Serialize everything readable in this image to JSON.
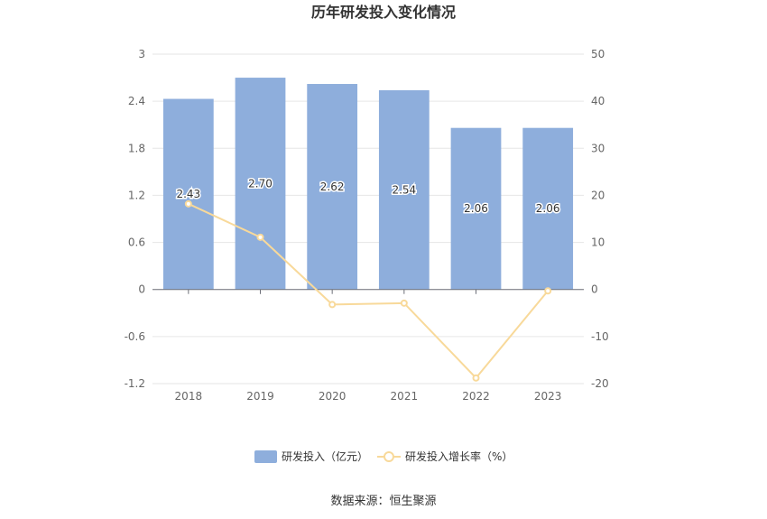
{
  "chart_data": {
    "type": "bar",
    "title": "历年研发投入变化情况",
    "categories": [
      "2018",
      "2019",
      "2020",
      "2021",
      "2022",
      "2023"
    ],
    "series": [
      {
        "name": "研发投入（亿元）",
        "type": "bar",
        "axis": "left",
        "values": [
          2.43,
          2.7,
          2.62,
          2.54,
          2.06,
          2.06
        ],
        "labels": [
          "2.43",
          "2.70",
          "2.62",
          "2.54",
          "2.06",
          "2.06"
        ],
        "color": "#8eaedc"
      },
      {
        "name": "研发投入增长率（%）",
        "type": "line",
        "axis": "right",
        "values": [
          18.2,
          11.1,
          -3.2,
          -2.9,
          -18.8,
          -0.3
        ],
        "color": "#f8d99a"
      }
    ],
    "y_left": {
      "ylim": [
        -1.2,
        3
      ],
      "ticks": [
        "3",
        "2.4",
        "1.8",
        "1.2",
        "0.6",
        "0",
        "-0.6",
        "-1.2"
      ]
    },
    "y_right": {
      "ylim": [
        -20,
        50
      ],
      "ticks": [
        "50",
        "40",
        "30",
        "20",
        "10",
        "0",
        "-10",
        "-20"
      ]
    },
    "grid": true,
    "legend": "bottom-center",
    "source": "数据来源：恒生聚源"
  }
}
